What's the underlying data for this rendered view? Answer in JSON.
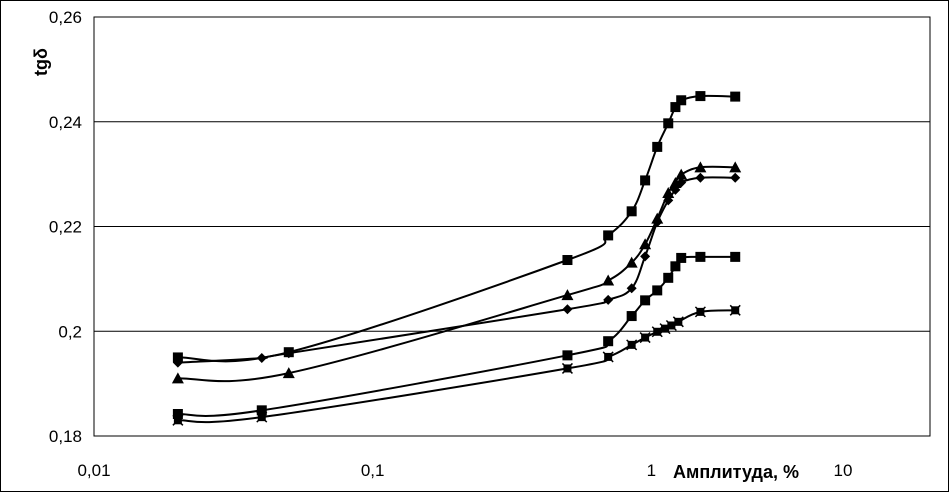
{
  "chart_data": {
    "type": "line",
    "ylabel": "tgδ",
    "xlabel": "Амплитуда, %",
    "x_scale": "log",
    "xlim": [
      0.01,
      10
    ],
    "ylim": [
      0.18,
      0.26
    ],
    "grid": "horizontal",
    "x_ticks": [
      {
        "value": 0.01,
        "label": "0,01"
      },
      {
        "value": 0.1,
        "label": "0,1"
      },
      {
        "value": 1,
        "label": "1"
      },
      {
        "value": 10,
        "label": "10"
      }
    ],
    "y_ticks": [
      {
        "value": 0.18,
        "label": "0,18"
      },
      {
        "value": 0.2,
        "label": "0,2"
      },
      {
        "value": 0.22,
        "label": "0,22"
      },
      {
        "value": 0.24,
        "label": "0,24"
      },
      {
        "value": 0.26,
        "label": "0,26"
      }
    ],
    "series": [
      {
        "marker": "square",
        "x": [
          0.02,
          0.05,
          0.5,
          0.7,
          0.85,
          0.95,
          1.05,
          1.15,
          1.22,
          1.28,
          1.5,
          2.0
        ],
        "y": [
          0.195,
          0.196,
          0.2136,
          0.2183,
          0.2229,
          0.2288,
          0.2352,
          0.2397,
          0.2428,
          0.2441,
          0.2449,
          0.2448
        ]
      },
      {
        "marker": "triangle",
        "x": [
          0.02,
          0.05,
          0.5,
          0.7,
          0.85,
          0.95,
          1.05,
          1.15,
          1.22,
          1.28,
          1.5,
          2.0
        ],
        "y": [
          0.191,
          0.192,
          0.2069,
          0.2097,
          0.2131,
          0.2166,
          0.2215,
          0.2264,
          0.2283,
          0.2299,
          0.2313,
          0.2313
        ]
      },
      {
        "marker": "diamond",
        "x": [
          0.02,
          0.04,
          0.05,
          0.5,
          0.7,
          0.85,
          0.95,
          1.05,
          1.15,
          1.22,
          1.28,
          1.5,
          2.0
        ],
        "y": [
          0.194,
          0.1949,
          0.1958,
          0.2042,
          0.206,
          0.2082,
          0.2143,
          0.2208,
          0.225,
          0.227,
          0.2284,
          0.2293,
          0.2293
        ]
      },
      {
        "marker": "square",
        "x": [
          0.02,
          0.04,
          0.5,
          0.7,
          0.85,
          0.95,
          1.05,
          1.15,
          1.22,
          1.28,
          1.5,
          2.0
        ],
        "y": [
          0.1842,
          0.1849,
          0.1954,
          0.1981,
          0.2029,
          0.2059,
          0.2078,
          0.2102,
          0.2124,
          0.214,
          0.2142,
          0.2142
        ]
      },
      {
        "marker": "x",
        "x": [
          0.02,
          0.04,
          0.5,
          0.7,
          0.85,
          0.95,
          1.05,
          1.12,
          1.18,
          1.25,
          1.5,
          2.0
        ],
        "y": [
          0.183,
          0.1836,
          0.1929,
          0.1951,
          0.1974,
          0.1988,
          0.1999,
          0.2005,
          0.2011,
          0.2018,
          0.2037,
          0.204
        ]
      }
    ]
  }
}
